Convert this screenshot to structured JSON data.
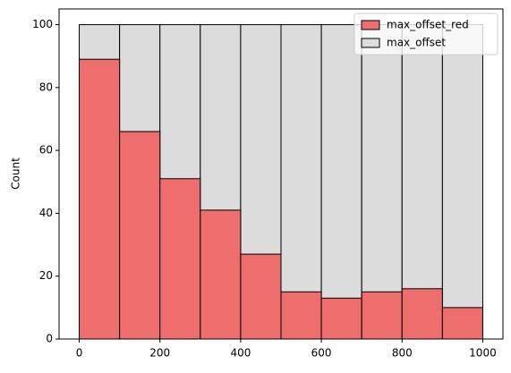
{
  "chart_data": {
    "type": "histogram",
    "ylabel": "Count",
    "bins": [
      0,
      100,
      200,
      300,
      400,
      500,
      600,
      700,
      800,
      900,
      1000
    ],
    "series": [
      {
        "name": "max_offset_red",
        "color": "#ee6e6e",
        "values": [
          89,
          66,
          51,
          41,
          27,
          15,
          13,
          15,
          16,
          10
        ]
      },
      {
        "name": "max_offset",
        "color": "#dcdcdc",
        "values": [
          100,
          100,
          100,
          100,
          100,
          100,
          100,
          100,
          100,
          100
        ]
      }
    ],
    "xlim": [
      -50,
      1050
    ],
    "ylim": [
      0,
      105
    ],
    "xticks": [
      0,
      200,
      400,
      600,
      800,
      1000
    ],
    "yticks": [
      0,
      20,
      40,
      60,
      80,
      100
    ],
    "legend": "upper right"
  }
}
